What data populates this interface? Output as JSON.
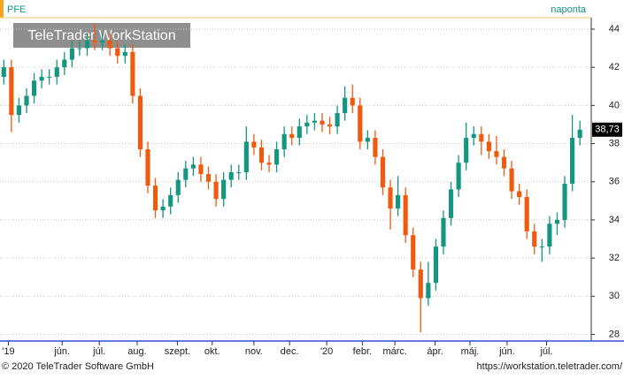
{
  "chart_data": {
    "type": "candlestick",
    "ticker": "PFE",
    "interval": "naponta",
    "watermark": "TeleTrader WorkStation",
    "footer_left": "© 2020 TeleTrader Software GmbH",
    "footer_right": "https://workstation.teletrader.com/",
    "up_color": "#14967f",
    "down_color": "#ef5a0f",
    "open": [
      41.5,
      42,
      39.5,
      40,
      40.5,
      41.3,
      41.5,
      41.5,
      42,
      42.4,
      43,
      43,
      43.4,
      43.3,
      43.4,
      43,
      42.6,
      42.8,
      40.5,
      37.7,
      35.8,
      34.5,
      34.7,
      35.3,
      36.1,
      36.7,
      36.9,
      36.4,
      36,
      35.1,
      36.1,
      36.5,
      36.5,
      38.1,
      37.8,
      37,
      36.9,
      37.7,
      38.5,
      38.3,
      38.9,
      39.1,
      39.2,
      39,
      38.9,
      39.6,
      40.4,
      40,
      38.1,
      38.3,
      37.3,
      35.7,
      34.6,
      35.3,
      33.2,
      31.4,
      29.9,
      30.7,
      32.6,
      34.1,
      35.6,
      37,
      38.3,
      38.5,
      38.1,
      37.6,
      37.3,
      36.7,
      35.5,
      35.2,
      33.4,
      32.6,
      32.6,
      33.8,
      34,
      35.9,
      38.3
    ],
    "high": [
      42.4,
      42.4,
      40.4,
      40.9,
      41.7,
      41.9,
      41.9,
      42.4,
      42.8,
      43.4,
      43.4,
      43.8,
      44.3,
      43.8,
      43.8,
      43.4,
      43.2,
      43.2,
      40.9,
      38.1,
      36.2,
      35.1,
      35.7,
      36.5,
      37.1,
      37.3,
      37.3,
      36.8,
      36.4,
      36.5,
      36.9,
      36.9,
      38.9,
      38.5,
      38.2,
      37.4,
      38.1,
      38.9,
      38.9,
      39.3,
      39.5,
      39.6,
      39.6,
      39.4,
      40,
      41,
      41.1,
      40.4,
      38.7,
      38.7,
      37.7,
      36.1,
      36.3,
      35.7,
      33.6,
      31.8,
      31.8,
      33,
      34.5,
      36,
      37.4,
      39.1,
      38.9,
      38.9,
      38.5,
      38.4,
      37.7,
      37.1,
      35.9,
      35.6,
      33.8,
      33,
      34.2,
      34.4,
      36.3,
      39.5,
      39.2
    ],
    "low": [
      41.1,
      38.6,
      39.1,
      39.6,
      40.1,
      40.9,
      41.1,
      41.1,
      41.6,
      42,
      42.6,
      42.6,
      42.9,
      42.9,
      42.6,
      42.2,
      42.2,
      40.1,
      37.3,
      35.4,
      34.1,
      34.1,
      34.3,
      34.9,
      35.7,
      36.3,
      36,
      35.6,
      34.7,
      34.7,
      35.7,
      36.1,
      36.1,
      37.4,
      36.6,
      36.5,
      36.5,
      37.3,
      37.9,
      37.9,
      38.5,
      38.7,
      38.6,
      38.5,
      38.5,
      39.2,
      39.6,
      37.7,
      37.7,
      36.9,
      35.3,
      33.5,
      34.2,
      32.8,
      31,
      28.1,
      29.5,
      30.3,
      32.2,
      33.7,
      35.2,
      36.6,
      37.9,
      37.4,
      37.2,
      36.9,
      36.3,
      35.1,
      34.8,
      33,
      32.2,
      31.8,
      32.2,
      33.2,
      33.6,
      35.5,
      37.9
    ],
    "close": [
      42,
      39.5,
      40,
      40.5,
      41.3,
      41.5,
      41.5,
      42,
      42.4,
      43,
      43,
      43.4,
      43.3,
      43.4,
      43,
      42.6,
      42.8,
      40.5,
      37.7,
      35.8,
      34.5,
      34.7,
      35.3,
      36.1,
      36.7,
      36.9,
      36.4,
      36,
      35.1,
      36.1,
      36.5,
      36.5,
      38.1,
      37.8,
      37,
      36.9,
      37.7,
      38.5,
      38.3,
      38.9,
      39.1,
      39.2,
      39,
      38.9,
      39.6,
      40.4,
      40,
      38.1,
      38.3,
      37.3,
      35.7,
      34.6,
      35.3,
      33.2,
      31.4,
      29.9,
      30.7,
      32.6,
      34.1,
      35.6,
      37,
      38.3,
      38.5,
      38.1,
      37.6,
      37.3,
      36.7,
      35.5,
      35.2,
      33.4,
      32.6,
      32.6,
      33.8,
      34,
      35.9,
      38.3,
      38.73
    ],
    "last_price": {
      "value": 38.73,
      "label": "38,73"
    },
    "xlim": [
      -0.5,
      77.5
    ],
    "xticks": [
      {
        "value": 0.6,
        "label": "'19"
      },
      {
        "value": 7.7,
        "label": "jún."
      },
      {
        "value": 12.6,
        "label": "júl."
      },
      {
        "value": 17.6,
        "label": "aug."
      },
      {
        "value": 22.9,
        "label": "szept."
      },
      {
        "value": 27.5,
        "label": "okt."
      },
      {
        "value": 33,
        "label": "nov."
      },
      {
        "value": 37.7,
        "label": "dec."
      },
      {
        "value": 42.6,
        "label": "'20"
      },
      {
        "value": 47.3,
        "label": "febr."
      },
      {
        "value": 51.6,
        "label": "márc."
      },
      {
        "value": 56.9,
        "label": "ápr."
      },
      {
        "value": 61.5,
        "label": "máj."
      },
      {
        "value": 66.4,
        "label": "jún."
      },
      {
        "value": 71.6,
        "label": "júl."
      }
    ],
    "ylim": [
      27.7,
      44.6
    ],
    "yticks": [
      28,
      30,
      32,
      34,
      36,
      38,
      40,
      42,
      44
    ],
    "grid": true
  }
}
